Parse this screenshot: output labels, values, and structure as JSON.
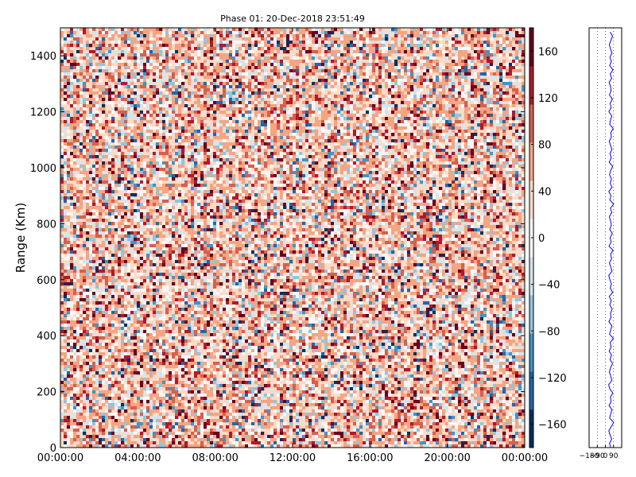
{
  "chart_data": [
    {
      "type": "heatmap",
      "title": "Phase 01: 20-Dec-2018 23:51:49",
      "ylabel": "Range (Km)",
      "xlabel": "",
      "x_ticks": [
        "00:00:00",
        "04:00:00",
        "08:00:00",
        "12:00:00",
        "16:00:00",
        "20:00:00",
        "00:00:00"
      ],
      "x_range_hours": [
        0,
        24
      ],
      "y_ticks": [
        0,
        200,
        400,
        600,
        800,
        1000,
        1200,
        1400
      ],
      "ylim": [
        0,
        1500
      ],
      "colorbar": {
        "ticks": [
          160,
          120,
          80,
          40,
          0,
          -40,
          -80,
          -120,
          -160
        ],
        "tick_labels": [
          "160",
          "120",
          "80",
          "40",
          "0",
          "−40",
          "−80",
          "−120",
          "−160"
        ],
        "range": [
          -180,
          180
        ],
        "colormap": "RdBu_r"
      },
      "colors": {
        "dark_red": "#67001f",
        "red": "#b2182b",
        "salmon": "#d6604d",
        "light_salmon": "#f4a582",
        "pale": "#fddbc7",
        "white": "#f7f7f7",
        "pale_blue": "#d1e5f0",
        "light_blue": "#92c5de",
        "blue": "#4393c3",
        "dark_blue": "#2166ac",
        "navy": "#053061"
      }
    },
    {
      "type": "line",
      "title": "",
      "x_ticks": [
        "−180",
        "−90",
        "0",
        "90"
      ],
      "x_tick_values": [
        -180,
        -90,
        0,
        90
      ],
      "xlim": [
        -180,
        180
      ],
      "ylim": [
        0,
        1500
      ],
      "series": [
        {
          "color": "#0000ff",
          "y_step_km": 15,
          "values": [
            61,
            45,
            70,
            52,
            38,
            66,
            90,
            47,
            58,
            74,
            41,
            63,
            55,
            82,
            49,
            36,
            71,
            60,
            44,
            57,
            79,
            51,
            68,
            42,
            64,
            53,
            88,
            46,
            59,
            72,
            39,
            62,
            56,
            75,
            48,
            65,
            43,
            81,
            54,
            67,
            50,
            37,
            73,
            61,
            45,
            69,
            57,
            84,
            40,
            63,
            52,
            76,
            47,
            66,
            58,
            44,
            70,
            55,
            91,
            49,
            62,
            38,
            74,
            53,
            68,
            46,
            59,
            80,
            42,
            65,
            51,
            72,
            57,
            43,
            67,
            60,
            86,
            48,
            55,
            71,
            39,
            64,
            52,
            77,
            45,
            62,
            58,
            41,
            69,
            54,
            83,
            47,
            66,
            50,
            73,
            56,
            44,
            61,
            79,
            53
          ]
        }
      ]
    }
  ]
}
